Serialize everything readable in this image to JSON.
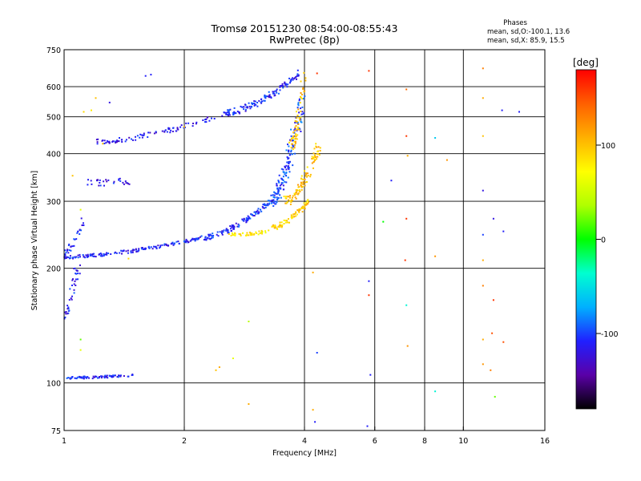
{
  "title": {
    "line1": "Tromsø 20151230 08:54:00-08:55:43",
    "line2": "RwPretec (8p)"
  },
  "phases_box": {
    "heading": "Phases",
    "o_line": "mean, sd,O:-100.1, 13.6",
    "x_line": "mean, sd,X:  85.9, 15.5"
  },
  "chart_data": {
    "type": "scatter",
    "title": "Tromsø 20151230 08:54:00-08:55:43",
    "subtitle": "RwPretec (8p)",
    "xlabel": "Frequency [MHz]",
    "ylabel": "Stationary phase Virtual Height [km]",
    "x_scale": "log",
    "y_scale": "log",
    "xlim": [
      1,
      16
    ],
    "ylim": [
      75,
      750
    ],
    "x_ticks": [
      1,
      2,
      4,
      6,
      8,
      10,
      16
    ],
    "y_ticks": [
      75,
      100,
      200,
      300,
      400,
      500,
      600,
      750
    ],
    "grid": true,
    "colorbar": {
      "label": "[deg]",
      "range": [
        -180,
        180
      ],
      "ticks": [
        100,
        0,
        -100
      ],
      "colors": [
        "#000000",
        "#5a00a8",
        "#2020ff",
        "#00b0ff",
        "#00ffd0",
        "#00ff00",
        "#b0ff00",
        "#ffff00",
        "#ffb000",
        "#ff6000",
        "#ff0000"
      ]
    },
    "traces": [
      {
        "name": "",
        "x_start": 1.0,
        "x_end": 1.5,
        "h_start": 103,
        "h_end": 105,
        "phase": -110,
        "scatter": 0.015,
        "density": 80
      },
      {
        "name": "",
        "x_start": 1.0,
        "x_end": 2.2,
        "h_start": 214,
        "h_end": 240,
        "phase": -110,
        "scatter": 0.02,
        "density": 160
      },
      {
        "name": "",
        "x_start": 2.2,
        "x_end": 3.3,
        "h_start": 240,
        "h_end": 300,
        "phase": -105,
        "scatter": 0.03,
        "density": 120
      },
      {
        "name": "",
        "x_start": 3.3,
        "x_end": 3.95,
        "h_start": 300,
        "h_end": 560,
        "phase": -100,
        "scatter": 0.08,
        "density": 150
      },
      {
        "name": "",
        "x_start": 2.6,
        "x_end": 3.3,
        "h_start": 245,
        "h_end": 250,
        "phase": 80,
        "scatter": 0.02,
        "density": 40
      },
      {
        "name": "",
        "x_start": 3.3,
        "x_end": 4.1,
        "h_start": 255,
        "h_end": 300,
        "phase": 95,
        "scatter": 0.03,
        "density": 80
      },
      {
        "name": "",
        "x_start": 3.6,
        "x_end": 4.35,
        "h_start": 300,
        "h_end": 420,
        "phase": 100,
        "scatter": 0.06,
        "density": 100
      },
      {
        "name": "",
        "x_start": 3.7,
        "x_end": 4.0,
        "h_start": 420,
        "h_end": 650,
        "phase": 100,
        "scatter": 0.05,
        "density": 60
      },
      {
        "name": "",
        "x_start": 2.5,
        "x_end": 3.9,
        "h_start": 510,
        "h_end": 650,
        "phase": -110,
        "scatter": 0.04,
        "density": 130
      },
      {
        "name": "",
        "x_start": 1.2,
        "x_end": 2.4,
        "h_start": 430,
        "h_end": 500,
        "phase": -115,
        "scatter": 0.03,
        "density": 90
      },
      {
        "name": "",
        "x_start": 1.15,
        "x_end": 1.5,
        "h_start": 335,
        "h_end": 340,
        "phase": -115,
        "scatter": 0.04,
        "density": 30
      },
      {
        "name": "",
        "x_start": 1.0,
        "x_end": 1.08,
        "h_start": 150,
        "h_end": 200,
        "phase": -110,
        "scatter": 0.06,
        "density": 40
      },
      {
        "name": "",
        "x_start": 1.0,
        "x_end": 1.12,
        "h_start": 220,
        "h_end": 270,
        "phase": -110,
        "scatter": 0.04,
        "density": 30
      }
    ],
    "isolated_points": [
      {
        "x": 1.6,
        "y": 640,
        "phase": -110
      },
      {
        "x": 1.65,
        "y": 645,
        "phase": -110
      },
      {
        "x": 1.12,
        "y": 515,
        "phase": 90
      },
      {
        "x": 1.17,
        "y": 520,
        "phase": 80
      },
      {
        "x": 1.3,
        "y": 545,
        "phase": -120
      },
      {
        "x": 1.2,
        "y": 560,
        "phase": 100
      },
      {
        "x": 1.25,
        "y": 425,
        "phase": 100
      },
      {
        "x": 1.05,
        "y": 350,
        "phase": 100
      },
      {
        "x": 1.1,
        "y": 285,
        "phase": 60
      },
      {
        "x": 1.1,
        "y": 122,
        "phase": 60
      },
      {
        "x": 1.1,
        "y": 130,
        "phase": 20
      },
      {
        "x": 1.45,
        "y": 212,
        "phase": 90
      },
      {
        "x": 2.4,
        "y": 108,
        "phase": 100
      },
      {
        "x": 2.45,
        "y": 110,
        "phase": 110
      },
      {
        "x": 2.9,
        "y": 88,
        "phase": 110
      },
      {
        "x": 2.9,
        "y": 145,
        "phase": 40
      },
      {
        "x": 2.65,
        "y": 116,
        "phase": 60
      },
      {
        "x": 2.0,
        "y": 470,
        "phase": 110
      },
      {
        "x": 4.3,
        "y": 650,
        "phase": 160
      },
      {
        "x": 4.3,
        "y": 120,
        "phase": -100
      },
      {
        "x": 4.2,
        "y": 85,
        "phase": 110
      },
      {
        "x": 4.2,
        "y": 195,
        "phase": 110
      },
      {
        "x": 4.25,
        "y": 79,
        "phase": -110
      },
      {
        "x": 5.8,
        "y": 660,
        "phase": 160
      },
      {
        "x": 5.8,
        "y": 185,
        "phase": -110
      },
      {
        "x": 5.8,
        "y": 170,
        "phase": 160
      },
      {
        "x": 5.85,
        "y": 105,
        "phase": -110
      },
      {
        "x": 5.75,
        "y": 77,
        "phase": -110
      },
      {
        "x": 6.3,
        "y": 265,
        "phase": 0
      },
      {
        "x": 6.6,
        "y": 340,
        "phase": -110
      },
      {
        "x": 7.2,
        "y": 590,
        "phase": 140
      },
      {
        "x": 7.2,
        "y": 445,
        "phase": 160
      },
      {
        "x": 7.25,
        "y": 395,
        "phase": 110
      },
      {
        "x": 7.2,
        "y": 270,
        "phase": 160
      },
      {
        "x": 7.15,
        "y": 210,
        "phase": 160
      },
      {
        "x": 7.2,
        "y": 160,
        "phase": -40
      },
      {
        "x": 7.25,
        "y": 125,
        "phase": 120
      },
      {
        "x": 8.5,
        "y": 440,
        "phase": -60
      },
      {
        "x": 8.5,
        "y": 215,
        "phase": 120
      },
      {
        "x": 8.5,
        "y": 95,
        "phase": -40
      },
      {
        "x": 9.1,
        "y": 385,
        "phase": 120
      },
      {
        "x": 11.2,
        "y": 670,
        "phase": 130
      },
      {
        "x": 11.2,
        "y": 560,
        "phase": 110
      },
      {
        "x": 11.2,
        "y": 445,
        "phase": 100
      },
      {
        "x": 11.2,
        "y": 320,
        "phase": -120
      },
      {
        "x": 11.2,
        "y": 245,
        "phase": -100
      },
      {
        "x": 11.2,
        "y": 210,
        "phase": 110
      },
      {
        "x": 11.2,
        "y": 180,
        "phase": 130
      },
      {
        "x": 11.2,
        "y": 130,
        "phase": 110
      },
      {
        "x": 11.2,
        "y": 112,
        "phase": 120
      },
      {
        "x": 11.9,
        "y": 270,
        "phase": -120
      },
      {
        "x": 11.9,
        "y": 165,
        "phase": 160
      },
      {
        "x": 11.8,
        "y": 135,
        "phase": 150
      },
      {
        "x": 11.7,
        "y": 108,
        "phase": 130
      },
      {
        "x": 12.0,
        "y": 92,
        "phase": 20
      },
      {
        "x": 12.5,
        "y": 520,
        "phase": -110
      },
      {
        "x": 12.6,
        "y": 250,
        "phase": -110
      },
      {
        "x": 12.6,
        "y": 128,
        "phase": 150
      },
      {
        "x": 13.8,
        "y": 515,
        "phase": -110
      }
    ]
  }
}
